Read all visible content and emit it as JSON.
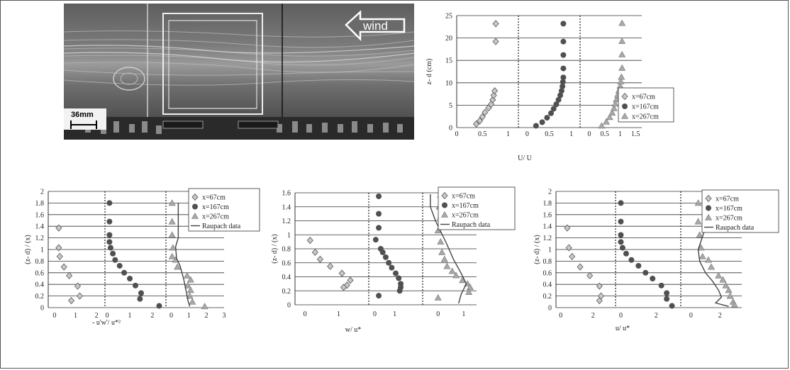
{
  "photo": {
    "wind_label": "wind",
    "scale_label": "36mm"
  },
  "colors": {
    "diamond": "#c8c8c8",
    "circle": "#505050",
    "triangle": "#a8a8a8",
    "line": "#444444"
  },
  "chart_data": [
    {
      "id": "top",
      "type": "scatter",
      "ylabel": "z- d (cm)",
      "xlabel": "U/ U",
      "ylim": [
        0,
        25
      ],
      "yticks": [
        "0",
        "5",
        "10",
        "15",
        "20",
        "25"
      ],
      "panels": [
        {
          "xmin": 0,
          "xmax": 1.2,
          "ticks": [
            "0",
            "0.5",
            "1"
          ]
        },
        {
          "xmin": -0.2,
          "xmax": 1.2,
          "ticks": [
            "0",
            "0.5",
            "1"
          ]
        },
        {
          "xmin": -0.3,
          "xmax": 1.7,
          "ticks": [
            "0",
            "0.5",
            "1",
            "1.5"
          ]
        }
      ],
      "legend": [
        "x=67cm",
        "x=167cm",
        "x=267cm"
      ],
      "series": [
        {
          "name": "x=67cm",
          "marker": "diamond",
          "panel": 0,
          "points": [
            [
              0.38,
              0.8
            ],
            [
              0.45,
              1.5
            ],
            [
              0.5,
              2.4
            ],
            [
              0.55,
              3.4
            ],
            [
              0.62,
              4.4
            ],
            [
              0.67,
              5.2
            ],
            [
              0.7,
              6.2
            ],
            [
              0.72,
              7.2
            ],
            [
              0.74,
              8.2
            ],
            [
              0.76,
              19.2
            ],
            [
              0.76,
              23.2
            ]
          ]
        },
        {
          "name": "x=167cm",
          "marker": "circle",
          "panel": 1,
          "points": [
            [
              0.2,
              0.4
            ],
            [
              0.34,
              1.2
            ],
            [
              0.45,
              2.2
            ],
            [
              0.54,
              3.2
            ],
            [
              0.6,
              4.2
            ],
            [
              0.66,
              5.2
            ],
            [
              0.71,
              6.2
            ],
            [
              0.75,
              7.2
            ],
            [
              0.78,
              8.2
            ],
            [
              0.8,
              9.2
            ],
            [
              0.81,
              10.2
            ],
            [
              0.82,
              11.2
            ],
            [
              0.82,
              13.2
            ],
            [
              0.82,
              16.2
            ],
            [
              0.82,
              19.2
            ],
            [
              0.82,
              23.2
            ]
          ]
        },
        {
          "name": "x=267cm",
          "marker": "triangle",
          "panel": 2,
          "points": [
            [
              0.4,
              0.4
            ],
            [
              0.55,
              1.3
            ],
            [
              0.66,
              2.3
            ],
            [
              0.74,
              3.3
            ],
            [
              0.8,
              4.3
            ],
            [
              0.84,
              5.3
            ],
            [
              0.88,
              6.3
            ],
            [
              0.92,
              7.3
            ],
            [
              0.96,
              8.3
            ],
            [
              1.0,
              9.3
            ],
            [
              1.02,
              10.3
            ],
            [
              1.04,
              11.3
            ],
            [
              1.06,
              13.3
            ],
            [
              1.06,
              16.3
            ],
            [
              1.06,
              19.3
            ],
            [
              1.06,
              23.3
            ]
          ]
        }
      ]
    },
    {
      "id": "bl",
      "type": "scatter",
      "ylabel": "(z- d) / (x)",
      "xlabel": "- u'w'/ u*²",
      "ylim": [
        0,
        2
      ],
      "yticks": [
        "0",
        "0.2",
        "0.4",
        "0.6",
        "0.8",
        "1",
        "1.2",
        "1.4",
        "1.6",
        "1.8",
        "2"
      ],
      "panels": [
        {
          "xmin": -0.3,
          "xmax": 2.4,
          "ticks": [
            "0",
            "1",
            "2"
          ]
        },
        {
          "xmin": -0.1,
          "xmax": 2.6,
          "ticks": [
            "0",
            "1",
            "2"
          ]
        },
        {
          "xmin": -0.3,
          "xmax": 3.0,
          "ticks": [
            "0",
            "1",
            "2",
            "3"
          ]
        }
      ],
      "legend": [
        "x=67cm",
        "x=167cm",
        "x=267cm",
        "Raupach data"
      ],
      "series": [
        {
          "name": "x=67cm",
          "marker": "diamond",
          "panel": 0,
          "points": [
            [
              0.2,
              1.37
            ],
            [
              0.2,
              1.03
            ],
            [
              0.25,
              0.88
            ],
            [
              0.45,
              0.7
            ],
            [
              0.7,
              0.55
            ],
            [
              1.1,
              0.37
            ],
            [
              1.2,
              0.2
            ],
            [
              0.8,
              0.12
            ]
          ]
        },
        {
          "name": "x=167cm",
          "marker": "circle",
          "panel": 1,
          "points": [
            [
              0.1,
              1.8
            ],
            [
              0.1,
              1.48
            ],
            [
              0.1,
              1.25
            ],
            [
              0.1,
              1.13
            ],
            [
              0.15,
              1.03
            ],
            [
              0.25,
              0.93
            ],
            [
              0.35,
              0.82
            ],
            [
              0.55,
              0.72
            ],
            [
              0.75,
              0.6
            ],
            [
              1.0,
              0.5
            ],
            [
              1.25,
              0.38
            ],
            [
              1.5,
              0.25
            ],
            [
              1.45,
              0.15
            ],
            [
              2.3,
              0.03
            ]
          ]
        },
        {
          "name": "x=267cm",
          "marker": "triangle",
          "panel": 2,
          "points": [
            [
              0.05,
              1.8
            ],
            [
              0.05,
              1.48
            ],
            [
              0.05,
              1.25
            ],
            [
              0.1,
              1.03
            ],
            [
              0.05,
              0.88
            ],
            [
              0.25,
              0.82
            ],
            [
              0.35,
              0.7
            ],
            [
              0.9,
              0.55
            ],
            [
              1.1,
              0.48
            ],
            [
              0.95,
              0.38
            ],
            [
              1.1,
              0.3
            ],
            [
              1.05,
              0.2
            ],
            [
              1.2,
              0.1
            ],
            [
              1.9,
              0.02
            ]
          ]
        },
        {
          "name": "Raupach data",
          "type": "line",
          "panel": 2,
          "points": [
            [
              0.4,
              1.8
            ],
            [
              0.4,
              1.2
            ],
            [
              0.25,
              1.05
            ],
            [
              0.3,
              0.85
            ],
            [
              0.5,
              0.72
            ],
            [
              0.7,
              0.5
            ],
            [
              0.85,
              0.28
            ],
            [
              0.95,
              0.12
            ],
            [
              1.05,
              0.02
            ]
          ]
        }
      ]
    },
    {
      "id": "bm",
      "type": "scatter",
      "ylabel": "(z- d) / (x)",
      "xlabel": "w/ u*",
      "ylim": [
        0,
        1.6
      ],
      "yticks": [
        "0",
        "0.2",
        "0.4",
        "0.6",
        "0.8",
        "1",
        "1.2",
        "1.4",
        "1.6"
      ],
      "panels": [
        {
          "xmin": -0.3,
          "xmax": 1.9,
          "ticks": [
            "0",
            "1"
          ]
        },
        {
          "xmin": -0.3,
          "xmax": 2.4,
          "ticks": [
            "0",
            "1"
          ]
        },
        {
          "xmin": -0.6,
          "xmax": 1.5,
          "ticks": [
            "0",
            "1"
          ]
        }
      ],
      "legend": [
        "x=67cm",
        "x=167cm",
        "x=267cm",
        "Raupach data"
      ],
      "series": [
        {
          "name": "x=67cm",
          "marker": "diamond",
          "panel": 0,
          "points": [
            [
              0.15,
              0.92
            ],
            [
              0.3,
              0.75
            ],
            [
              0.45,
              0.65
            ],
            [
              0.75,
              0.55
            ],
            [
              1.1,
              0.45
            ],
            [
              1.35,
              0.35
            ],
            [
              1.25,
              0.28
            ],
            [
              1.15,
              0.25
            ]
          ]
        },
        {
          "name": "x=167cm",
          "marker": "circle",
          "panel": 1,
          "points": [
            [
              0.2,
              1.55
            ],
            [
              0.2,
              1.3
            ],
            [
              0.2,
              1.1
            ],
            [
              0.05,
              0.93
            ],
            [
              0.3,
              0.8
            ],
            [
              0.4,
              0.75
            ],
            [
              0.55,
              0.68
            ],
            [
              0.7,
              0.6
            ],
            [
              0.85,
              0.53
            ],
            [
              1.05,
              0.45
            ],
            [
              1.2,
              0.38
            ],
            [
              1.3,
              0.3
            ],
            [
              1.3,
              0.25
            ],
            [
              1.25,
              0.2
            ],
            [
              0.2,
              0.13
            ]
          ]
        },
        {
          "name": "x=267cm",
          "marker": "triangle",
          "panel": 2,
          "points": [
            [
              0.1,
              1.57
            ],
            [
              0.05,
              1.4
            ],
            [
              0.1,
              1.26
            ],
            [
              0.0,
              1.06
            ],
            [
              0.1,
              0.9
            ],
            [
              0.15,
              0.75
            ],
            [
              0.25,
              0.65
            ],
            [
              0.35,
              0.55
            ],
            [
              0.55,
              0.48
            ],
            [
              0.7,
              0.42
            ],
            [
              0.95,
              0.35
            ],
            [
              1.15,
              0.3
            ],
            [
              1.25,
              0.25
            ],
            [
              1.2,
              0.18
            ],
            [
              0.0,
              0.1
            ]
          ]
        },
        {
          "name": "Raupach data",
          "type": "line",
          "panel": 2,
          "points": [
            [
              -0.3,
              1.58
            ],
            [
              -0.3,
              1.4
            ],
            [
              -0.1,
              1.2
            ],
            [
              0.3,
              0.9
            ],
            [
              0.6,
              0.65
            ],
            [
              0.9,
              0.45
            ],
            [
              1.1,
              0.3
            ],
            [
              0.9,
              0.15
            ],
            [
              0.8,
              0.02
            ]
          ]
        }
      ]
    },
    {
      "id": "br",
      "type": "scatter",
      "ylabel": "(z- d) / (x)",
      "xlabel": "u/ u*",
      "ylim": [
        0,
        2
      ],
      "yticks": [
        "0",
        "0.2",
        "0.4",
        "0.6",
        "0.8",
        "1",
        "1.2",
        "1.4",
        "1.6",
        "1.8",
        "2"
      ],
      "panels": [
        {
          "xmin": -0.3,
          "xmax": 3.4,
          "ticks": [
            "0",
            "2"
          ]
        },
        {
          "xmin": -0.3,
          "xmax": 3.4,
          "ticks": [
            "0",
            "2"
          ]
        },
        {
          "xmin": -0.7,
          "xmax": 3.5,
          "ticks": [
            "0",
            "2"
          ]
        }
      ],
      "legend": [
        "x=67cm",
        "x=167cm",
        "x=267cm",
        "Raupach data"
      ],
      "series": [
        {
          "name": "x=67cm",
          "marker": "diamond",
          "panel": 0,
          "points": [
            [
              0.4,
              1.37
            ],
            [
              0.5,
              1.03
            ],
            [
              0.7,
              0.88
            ],
            [
              1.2,
              0.7
            ],
            [
              1.8,
              0.55
            ],
            [
              2.4,
              0.37
            ],
            [
              2.5,
              0.2
            ],
            [
              2.4,
              0.12
            ]
          ]
        },
        {
          "name": "x=167cm",
          "marker": "circle",
          "panel": 1,
          "points": [
            [
              0.0,
              1.8
            ],
            [
              0.0,
              1.48
            ],
            [
              0.0,
              1.25
            ],
            [
              0.0,
              1.13
            ],
            [
              0.1,
              1.03
            ],
            [
              0.3,
              0.93
            ],
            [
              0.6,
              0.82
            ],
            [
              1.0,
              0.72
            ],
            [
              1.4,
              0.6
            ],
            [
              1.8,
              0.5
            ],
            [
              2.3,
              0.38
            ],
            [
              2.6,
              0.25
            ],
            [
              2.6,
              0.15
            ],
            [
              2.9,
              0.03
            ]
          ]
        },
        {
          "name": "x=267cm",
          "marker": "triangle",
          "panel": 2,
          "points": [
            [
              0.5,
              1.8
            ],
            [
              0.5,
              1.48
            ],
            [
              0.6,
              1.25
            ],
            [
              0.7,
              1.03
            ],
            [
              0.8,
              0.88
            ],
            [
              1.2,
              0.82
            ],
            [
              1.4,
              0.7
            ],
            [
              1.9,
              0.55
            ],
            [
              2.2,
              0.48
            ],
            [
              2.4,
              0.38
            ],
            [
              2.6,
              0.3
            ],
            [
              2.7,
              0.2
            ],
            [
              2.9,
              0.1
            ],
            [
              3.0,
              0.05
            ]
          ]
        },
        {
          "name": "Raupach data",
          "type": "line",
          "panel": 2,
          "points": [
            [
              0.9,
              1.8
            ],
            [
              0.9,
              1.3
            ],
            [
              0.5,
              1.0
            ],
            [
              0.6,
              0.8
            ],
            [
              1.0,
              0.6
            ],
            [
              1.5,
              0.45
            ],
            [
              1.9,
              0.3
            ],
            [
              2.1,
              0.18
            ],
            [
              1.7,
              0.08
            ],
            [
              2.6,
              0.02
            ]
          ]
        }
      ]
    }
  ]
}
